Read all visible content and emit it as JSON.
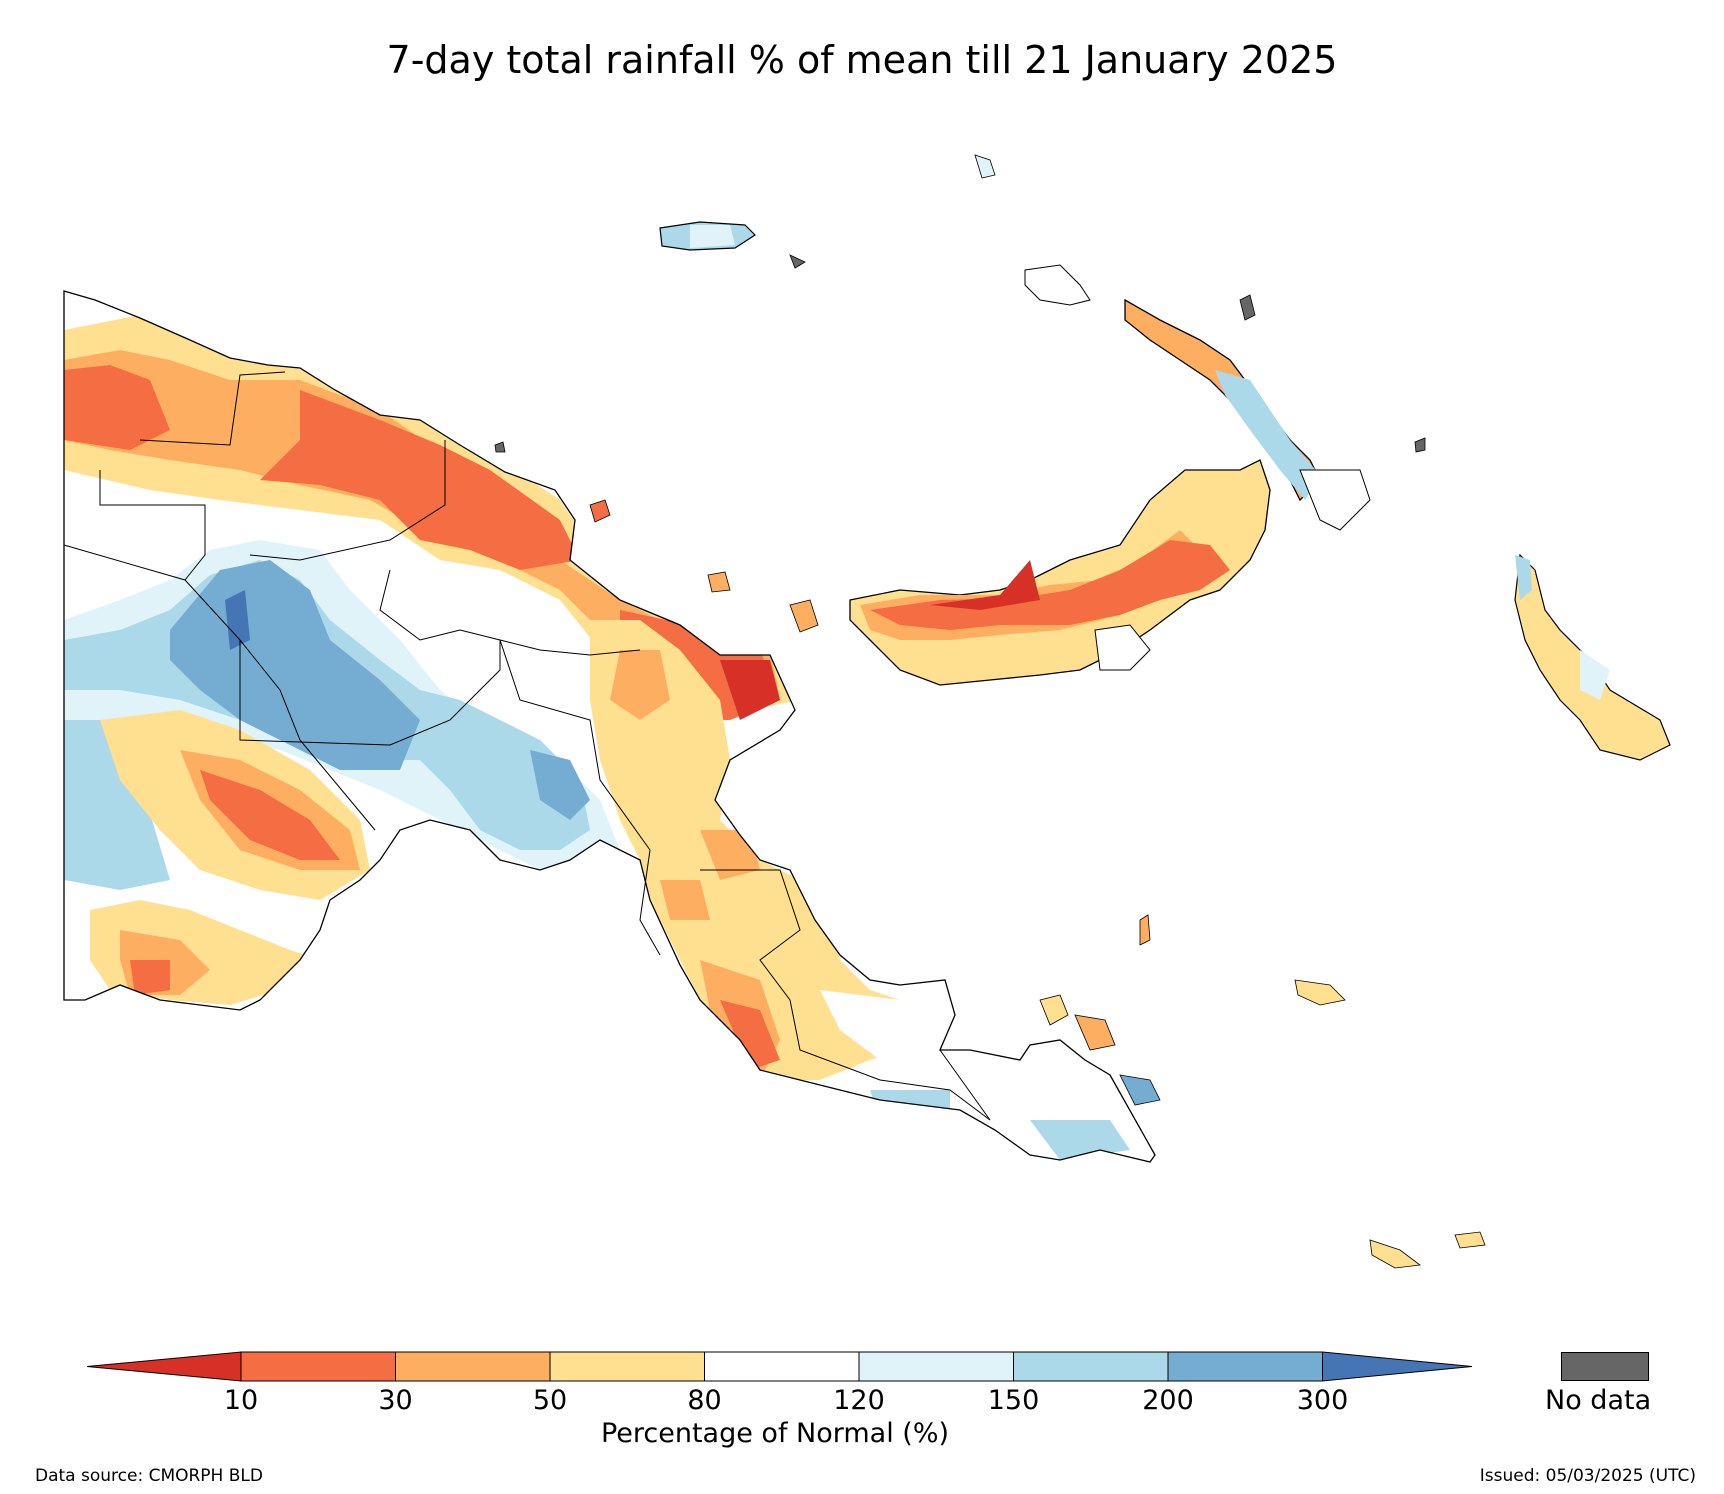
{
  "title": "7-day total rainfall % of mean till 21 January 2025",
  "colorbar": {
    "label": "Percentage of Normal (%)",
    "ticks": [
      "10",
      "30",
      "50",
      "80",
      "120",
      "150",
      "200",
      "300"
    ],
    "bins": [
      {
        "range": "<10",
        "color": "#d73027"
      },
      {
        "range": "10-30",
        "color": "#f46d43"
      },
      {
        "range": "30-50",
        "color": "#fdae61"
      },
      {
        "range": "50-80",
        "color": "#fee090"
      },
      {
        "range": "80-120",
        "color": "#ffffff"
      },
      {
        "range": "120-150",
        "color": "#e0f3f8"
      },
      {
        "range": "150-200",
        "color": "#abd9e9"
      },
      {
        "range": "200-300",
        "color": "#74add1"
      },
      {
        "range": ">300",
        "color": "#4575b4"
      }
    ]
  },
  "nodata": {
    "label": "No data",
    "color": "#666666"
  },
  "footer": {
    "source": "Data source: CMORPH BLD",
    "issued": "Issued: 05/03/2025 (UTC)"
  }
}
